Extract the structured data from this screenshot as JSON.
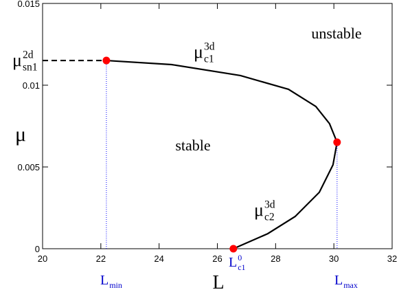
{
  "chart_data": {
    "type": "line",
    "xlabel": "L",
    "ylabel": "μ",
    "xlim": [
      20,
      32
    ],
    "ylim": [
      0,
      0.015
    ],
    "xticks": [
      20,
      22,
      24,
      26,
      28,
      30,
      32
    ],
    "yticks": [
      0,
      0.005,
      0.01,
      0.015
    ],
    "series": [
      {
        "type": "line",
        "style": "solid",
        "color": "#000000",
        "x": [
          22.19,
          24.43,
          26.79,
          28.44,
          29.38,
          29.85,
          30.11,
          29.97,
          29.5,
          28.67,
          27.73,
          26.55
        ],
        "y": [
          0.01151,
          0.01126,
          0.01059,
          0.00975,
          0.0087,
          0.00765,
          0.00651,
          0.00513,
          0.00345,
          0.00197,
          0.00092,
          0
        ]
      },
      {
        "type": "line",
        "style": "dashed",
        "color": "#000000",
        "x": [
          20,
          22.19
        ],
        "y": [
          0.01151,
          0.01151
        ]
      },
      {
        "type": "scatter",
        "color": "#ff0000",
        "drop_lines": true,
        "drop_line_color": "#0000ff",
        "x": [
          22.19,
          30.11,
          26.55
        ],
        "y": [
          0.01151,
          0.00651,
          0
        ]
      }
    ],
    "annotations": [
      {
        "base": "μ",
        "sub": "sn1",
        "sup": "2d",
        "color": "#000000"
      },
      {
        "base": "μ",
        "sub": "c1",
        "sup": "3d",
        "color": "#000000"
      },
      {
        "base": "μ",
        "sub": "c2",
        "sup": "3d",
        "color": "#000000"
      },
      {
        "base": "unstable",
        "color": "#000000"
      },
      {
        "base": "stable",
        "color": "#000000"
      },
      {
        "base": "L",
        "sub": "min",
        "color": "#0000cc"
      },
      {
        "base": "L",
        "sub": "c1",
        "sup": "0",
        "color": "#0000cc"
      },
      {
        "base": "L",
        "sub": "max",
        "color": "#0000cc"
      }
    ]
  }
}
